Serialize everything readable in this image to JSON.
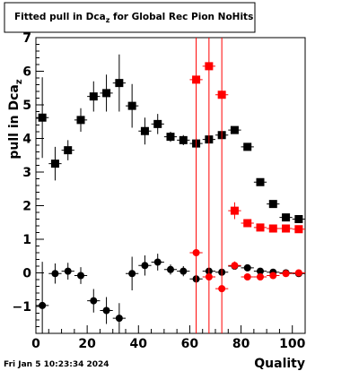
{
  "chart_data": {
    "type": "scatter",
    "title": "Fitted pull in Dca",
    "title_sub": "z",
    "title_suffix": " for Global Rec Pion NoHits",
    "xlabel": "Quality",
    "ylabel": "pull in Dca",
    "ylabel_sub": "z",
    "xlim": [
      0,
      105
    ],
    "ylim": [
      -1.8,
      7.0
    ],
    "x_ticks": [
      0,
      20,
      40,
      60,
      80,
      100
    ],
    "y_ticks": [
      -1,
      0,
      1,
      2,
      3,
      4,
      5,
      6,
      7
    ],
    "grid": false,
    "legend": "none",
    "timestamp": "Fri Jan  5 10:23:34 2024",
    "colors": {
      "black": "#000000",
      "red": "#ff0000"
    },
    "series": [
      {
        "color": "#000000",
        "marker": "square",
        "x": [
          2.5,
          7.5,
          12.5,
          17.5,
          22.5,
          27.5,
          32.5,
          37.5,
          42.5,
          47.5,
          52.5,
          57.5,
          62.5,
          67.5,
          72.5,
          77.5,
          82.5,
          87.5,
          92.5,
          97.5,
          102.5
        ],
        "y": [
          4.62,
          3.25,
          3.65,
          4.55,
          5.25,
          5.35,
          5.65,
          4.97,
          4.22,
          4.43,
          4.05,
          3.95,
          3.85,
          3.97,
          4.1,
          4.25,
          3.75,
          2.7,
          2.05,
          1.65,
          1.6
        ],
        "yerr": [
          1.2,
          0.5,
          0.3,
          0.35,
          0.45,
          0.55,
          0.85,
          0.65,
          0.4,
          0.3,
          0.15,
          0.15,
          0.15,
          0.1,
          0.1,
          0.08,
          0.07,
          0.06,
          0.05,
          0.05,
          0.05
        ],
        "xerr": 2.5
      },
      {
        "color": "#000000",
        "marker": "circle",
        "x": [
          2.5,
          7.5,
          12.5,
          17.5,
          22.5,
          27.5,
          32.5,
          37.5,
          42.5,
          47.5,
          52.5,
          57.5,
          62.5,
          67.5,
          72.5,
          77.5,
          82.5,
          87.5,
          92.5,
          97.5,
          102.5
        ],
        "y": [
          -0.97,
          -0.02,
          0.05,
          -0.08,
          -0.83,
          -1.12,
          -1.35,
          -0.02,
          0.22,
          0.32,
          0.1,
          0.05,
          -0.18,
          0.05,
          0.02,
          0.2,
          0.15,
          0.05,
          0.02,
          0.0,
          -0.02
        ],
        "yerr": [
          1.3,
          0.3,
          0.25,
          0.25,
          0.35,
          0.4,
          0.45,
          0.5,
          0.3,
          0.25,
          0.15,
          0.15,
          0.12,
          0.1,
          0.1,
          0.08,
          0.07,
          0.06,
          0.05,
          0.05,
          0.05
        ],
        "xerr": 2.5
      },
      {
        "color": "#ff0000",
        "marker": "square",
        "x": [
          62.5,
          67.5,
          72.5,
          77.5,
          82.5,
          87.5,
          92.5,
          97.5,
          102.5
        ],
        "y": [
          5.75,
          6.15,
          5.3,
          1.85,
          1.48,
          1.35,
          1.32,
          1.32,
          1.3
        ],
        "yerr": [
          8.8,
          8.8,
          8.8,
          0.25,
          0.07,
          0.06,
          0.05,
          0.05,
          0.05
        ],
        "xerr": 2.5
      },
      {
        "color": "#ff0000",
        "marker": "circle",
        "x": [
          62.5,
          67.5,
          72.5,
          77.5,
          82.5,
          87.5,
          92.5,
          97.5,
          102.5
        ],
        "y": [
          0.6,
          -0.12,
          -0.47,
          0.22,
          -0.12,
          -0.12,
          -0.08,
          -0.02,
          0.0
        ],
        "yerr": [
          0.0,
          0.0,
          0.0,
          0.12,
          0.07,
          0.06,
          0.05,
          0.05,
          0.05
        ],
        "xerr": 2.5
      }
    ]
  }
}
